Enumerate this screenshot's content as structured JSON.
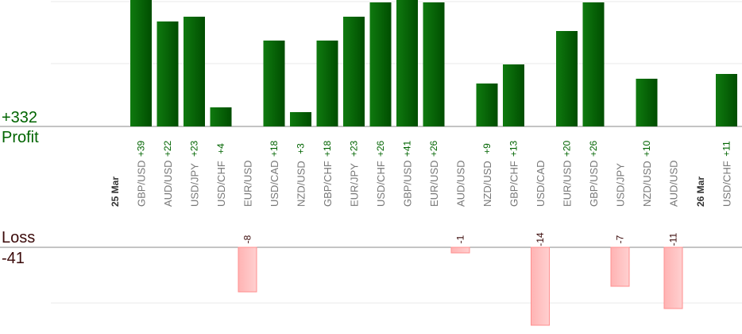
{
  "profit_total": "+332",
  "profit_label": "Profit",
  "loss_label": "Loss",
  "loss_total": "-41",
  "colors": {
    "profit_bar_dark": "#004d00",
    "profit_bar_light": "#0f7a0f",
    "profit_text": "#006400",
    "loss_bar_fill": "#ffb3b3",
    "loss_bar_edge": "#ff8f8f",
    "loss_text": "#3b0a0a",
    "axis_label": "#777777",
    "date_label": "#333333",
    "grid": "#e8e8e8",
    "baseline": "#888888"
  },
  "chart_data": {
    "type": "bar",
    "title": "",
    "xlabel": "",
    "ylabel": "",
    "grid": true,
    "note": "profit bars are clipped at the top of the image; values read from the per-bar labels",
    "items": [
      {
        "label": "25 Mar",
        "kind": "date"
      },
      {
        "label": "GBP/USD",
        "profit": "+39",
        "profit_value": 39
      },
      {
        "label": "AUD/USD",
        "profit": "+22",
        "profit_value": 22
      },
      {
        "label": "USD/JPY",
        "profit": "+23",
        "profit_value": 23
      },
      {
        "label": "USD/CHF",
        "profit": "+4",
        "profit_value": 4
      },
      {
        "label": "EUR/USD",
        "loss": "-8",
        "loss_value": -8
      },
      {
        "label": "USD/CAD",
        "profit": "+18",
        "profit_value": 18
      },
      {
        "label": "NZD/USD",
        "profit": "+3",
        "profit_value": 3
      },
      {
        "label": "GBP/CHF",
        "profit": "+18",
        "profit_value": 18
      },
      {
        "label": "EUR/JPY",
        "profit": "+23",
        "profit_value": 23
      },
      {
        "label": "USD/CHF",
        "profit": "+26",
        "profit_value": 26
      },
      {
        "label": "GBP/USD",
        "profit": "+41",
        "profit_value": 41
      },
      {
        "label": "EUR/USD",
        "profit": "+26",
        "profit_value": 26
      },
      {
        "label": "AUD/USD",
        "loss": "-1",
        "loss_value": -1
      },
      {
        "label": "NZD/USD",
        "profit": "+9",
        "profit_value": 9
      },
      {
        "label": "GBP/CHF",
        "profit": "+13",
        "profit_value": 13
      },
      {
        "label": "USD/CAD",
        "loss": "-14",
        "loss_value": -14
      },
      {
        "label": "EUR/USD",
        "profit": "+20",
        "profit_value": 20
      },
      {
        "label": "GBP/USD",
        "profit": "+26",
        "profit_value": 26
      },
      {
        "label": "USD/JPY",
        "loss": "-7",
        "loss_value": -7
      },
      {
        "label": "NZD/USD",
        "profit": "+10",
        "profit_value": 10
      },
      {
        "label": "AUD/USD",
        "loss": "-11",
        "loss_value": -11
      },
      {
        "label": "26 Mar",
        "kind": "date"
      },
      {
        "label": "USD/CHF",
        "profit": "+11",
        "profit_value": 11
      }
    ]
  }
}
